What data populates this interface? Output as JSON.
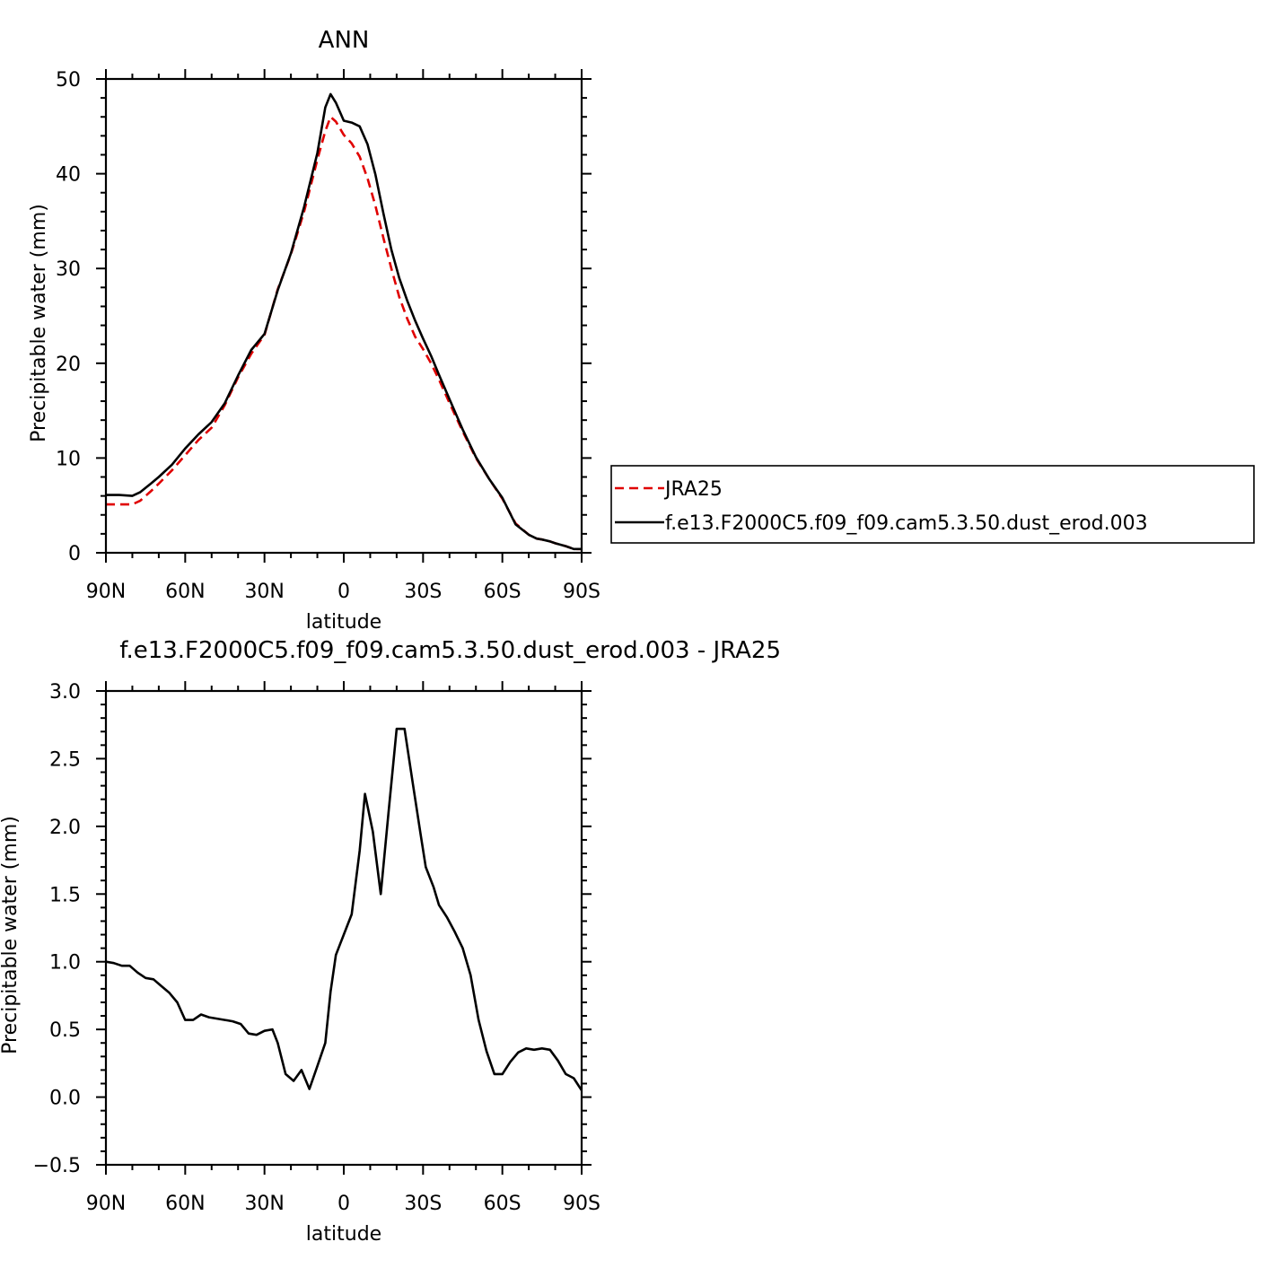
{
  "chart_data": [
    {
      "type": "line",
      "title": "ANN",
      "xlabel": "latitude",
      "ylabel": "Precipitable water (mm)",
      "xlim": [
        90,
        -90
      ],
      "ylim": [
        0,
        50
      ],
      "x_tick_values": [
        90,
        60,
        30,
        0,
        -30,
        -60,
        -90
      ],
      "x_tick_labels": [
        "90N",
        "60N",
        "30N",
        "0",
        "30S",
        "60S",
        "90S"
      ],
      "y_tick_values": [
        0,
        10,
        20,
        30,
        40,
        50
      ],
      "y_tick_labels": [
        "0",
        "10",
        "20",
        "30",
        "40",
        "50"
      ],
      "legend_position": "right",
      "series": [
        {
          "name": "JRA25",
          "color": "#e00000",
          "dash": true,
          "x": [
            90,
            85,
            80,
            77,
            73,
            70,
            65,
            60,
            55,
            50,
            45,
            40,
            35,
            30,
            25,
            20,
            15,
            10,
            7,
            5,
            3,
            0,
            -3,
            -6,
            -9,
            -12,
            -15,
            -18,
            -21,
            -24,
            -27,
            -30,
            -33,
            -36,
            -40,
            -45,
            -50,
            -55,
            -60,
            -65,
            -70,
            -73,
            -75,
            -78,
            -80,
            -84,
            -87,
            -90
          ],
          "y": [
            5.1,
            5.1,
            5.1,
            5.5,
            6.5,
            7.3,
            8.7,
            10.3,
            11.9,
            13.2,
            15.6,
            18.5,
            21.0,
            23.0,
            27.8,
            31.5,
            36.0,
            41.5,
            44.5,
            46.0,
            45.5,
            44.1,
            43.2,
            41.8,
            39.5,
            36.6,
            33.2,
            30.0,
            27.0,
            24.7,
            22.8,
            21.5,
            20.0,
            18.3,
            15.8,
            12.8,
            10.0,
            7.8,
            5.7,
            3.1,
            1.9,
            1.5,
            1.4,
            1.2,
            1.0,
            0.7,
            0.4,
            0.4
          ]
        },
        {
          "name": "f.e13.F2000C5.f09_f09.cam5.3.50.dust_erod.003",
          "color": "#000000",
          "dash": false,
          "x": [
            90,
            85,
            80,
            77,
            73,
            70,
            65,
            60,
            55,
            50,
            45,
            40,
            35,
            30,
            25,
            20,
            15,
            10,
            7,
            5,
            3,
            0,
            -3,
            -6,
            -9,
            -12,
            -15,
            -18,
            -21,
            -24,
            -27,
            -30,
            -33,
            -36,
            -40,
            -45,
            -50,
            -55,
            -60,
            -65,
            -70,
            -73,
            -75,
            -78,
            -80,
            -84,
            -87,
            -90
          ],
          "y": [
            6.1,
            6.1,
            6.0,
            6.4,
            7.3,
            8.0,
            9.3,
            11.0,
            12.5,
            13.8,
            15.8,
            18.7,
            21.4,
            23.1,
            27.7,
            31.6,
            36.5,
            42.2,
            47.0,
            48.4,
            47.5,
            45.6,
            45.4,
            45.0,
            43.1,
            39.9,
            35.8,
            32.0,
            29.0,
            26.6,
            24.5,
            22.6,
            20.8,
            18.8,
            16.2,
            13.0,
            10.1,
            7.8,
            5.8,
            3.0,
            1.9,
            1.5,
            1.4,
            1.2,
            1.0,
            0.7,
            0.4,
            0.4
          ]
        }
      ]
    },
    {
      "type": "line",
      "title": "f.e13.F2000C5.f09_f09.cam5.3.50.dust_erod.003 - JRA25",
      "xlabel": "latitude",
      "ylabel": "Precipitable water (mm)",
      "xlim": [
        90,
        -90
      ],
      "ylim": [
        -0.5,
        3.0
      ],
      "x_tick_values": [
        90,
        60,
        30,
        0,
        -30,
        -60,
        -90
      ],
      "x_tick_labels": [
        "90N",
        "60N",
        "30N",
        "0",
        "30S",
        "60S",
        "90S"
      ],
      "y_tick_values": [
        -0.5,
        0.0,
        0.5,
        1.0,
        1.5,
        2.0,
        2.5,
        3.0
      ],
      "y_tick_labels": [
        "−0.5",
        "0.0",
        "0.5",
        "1.0",
        "1.5",
        "2.0",
        "2.5",
        "3.0"
      ],
      "series": [
        {
          "color": "#000000",
          "dash": false,
          "x": [
            90,
            87,
            84,
            81,
            78,
            75,
            72,
            69,
            66,
            63,
            60,
            57,
            54,
            51,
            48,
            45,
            42,
            39,
            36,
            33,
            30,
            27,
            25,
            22,
            19,
            16,
            13,
            10,
            7,
            5,
            3,
            0,
            -3,
            -6,
            -8,
            -11,
            -14,
            -17,
            -20,
            -23,
            -26,
            -29,
            -31,
            -34,
            -36,
            -39,
            -42,
            -45,
            -48,
            -51,
            -54,
            -57,
            -60,
            -63,
            -66,
            -69,
            -72,
            -75,
            -78,
            -81,
            -84,
            -87,
            -90
          ],
          "y": [
            1.0,
            0.99,
            0.97,
            0.97,
            0.92,
            0.88,
            0.87,
            0.82,
            0.77,
            0.7,
            0.57,
            0.57,
            0.61,
            0.59,
            0.58,
            0.57,
            0.56,
            0.54,
            0.47,
            0.46,
            0.49,
            0.5,
            0.4,
            0.17,
            0.12,
            0.2,
            0.06,
            0.23,
            0.4,
            0.78,
            1.05,
            1.2,
            1.35,
            1.82,
            2.24,
            1.96,
            1.5,
            2.12,
            2.72,
            2.72,
            2.33,
            1.95,
            1.7,
            1.55,
            1.42,
            1.33,
            1.22,
            1.1,
            0.9,
            0.57,
            0.34,
            0.17,
            0.17,
            0.26,
            0.33,
            0.36,
            0.35,
            0.36,
            0.35,
            0.27,
            0.17,
            0.14,
            0.05
          ]
        }
      ]
    }
  ],
  "legend": {
    "entries": [
      {
        "label": "JRA25",
        "color": "#e00000",
        "dash": true
      },
      {
        "label": "f.e13.F2000C5.f09_f09.cam5.3.50.dust_erod.003",
        "color": "#000000",
        "dash": false
      }
    ]
  }
}
